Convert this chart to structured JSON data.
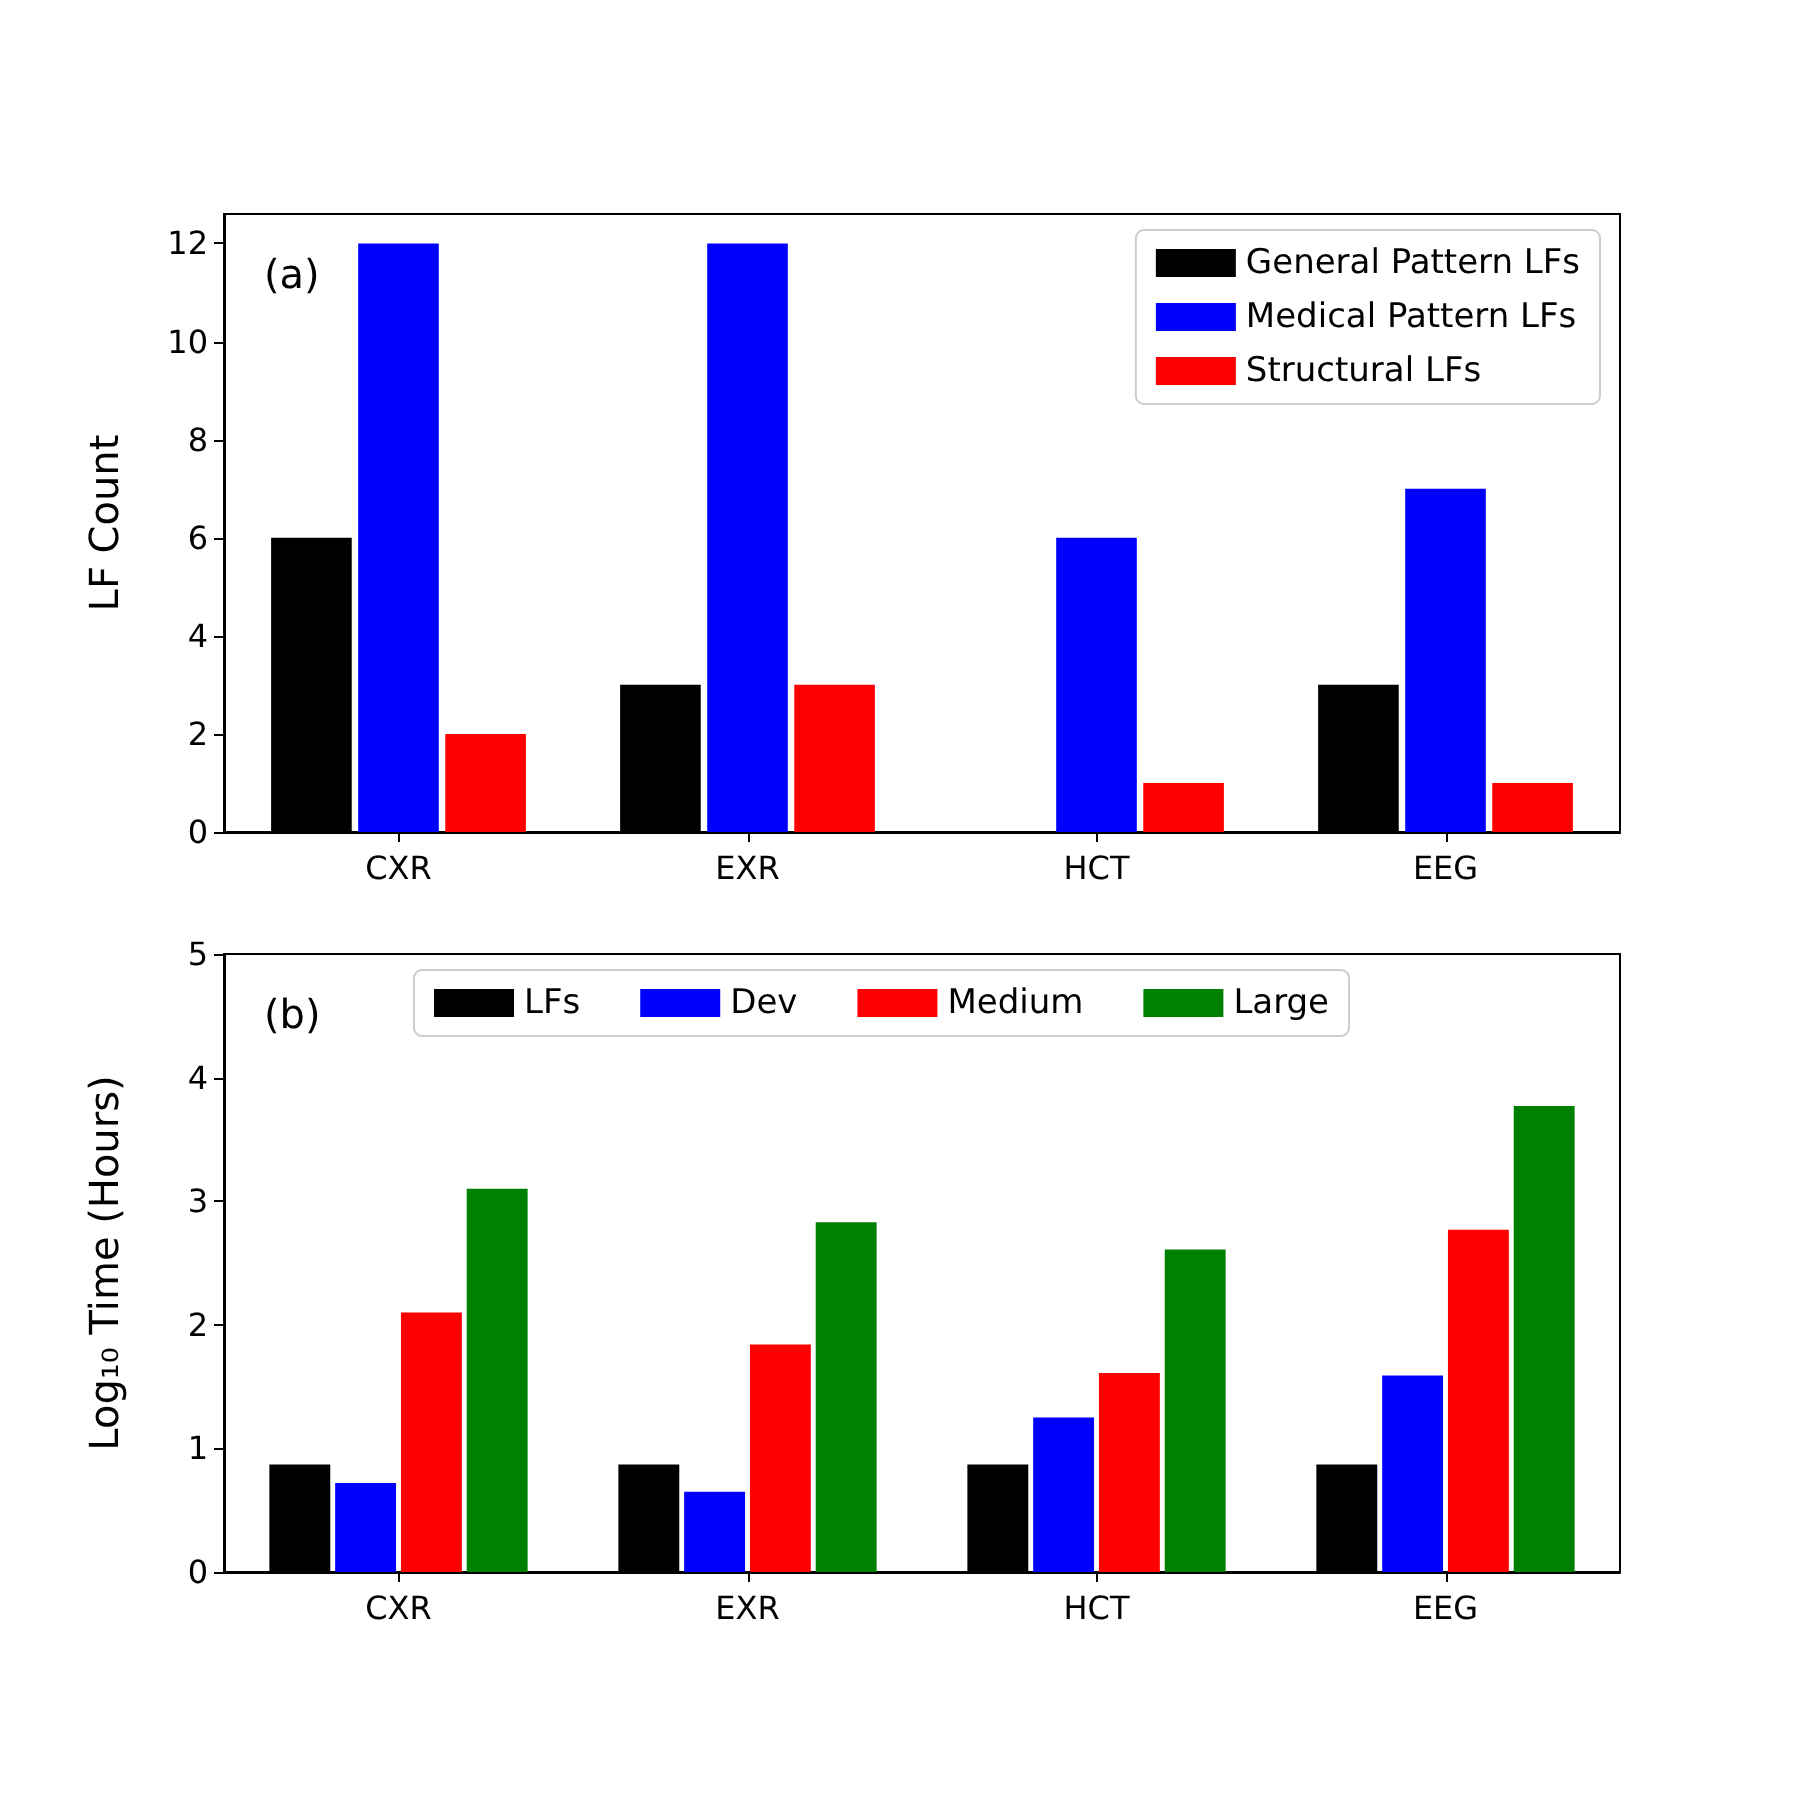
{
  "chart_data": [
    {
      "type": "bar",
      "ylabel": "LF Count",
      "annotations": [
        "(a)"
      ],
      "categories": [
        "CXR",
        "EXR",
        "HCT",
        "EEG"
      ],
      "series": [
        {
          "name": "General Pattern LFs",
          "color": "#000000",
          "values": [
            6,
            3,
            0,
            3
          ]
        },
        {
          "name": "Medical Pattern LFs",
          "color": "#0000ff",
          "values": [
            12,
            12,
            6,
            7
          ]
        },
        {
          "name": "Structural LFs",
          "color": "#ff0000",
          "values": [
            2,
            3,
            1,
            1
          ]
        }
      ],
      "ylim": [
        0,
        12.6
      ],
      "yticks": [
        0,
        2,
        4,
        6,
        8,
        10,
        12
      ],
      "grid": false,
      "legend": "top right"
    },
    {
      "type": "bar",
      "ylabel": "Log₁₀ Time (Hours)",
      "annotations": [
        "(b)"
      ],
      "categories": [
        "CXR",
        "EXR",
        "HCT",
        "EEG"
      ],
      "series": [
        {
          "name": "LFs",
          "color": "#000000",
          "values": [
            0.87,
            0.87,
            0.87,
            0.87
          ]
        },
        {
          "name": "Dev",
          "color": "#0000ff",
          "values": [
            0.72,
            0.65,
            1.25,
            1.59
          ]
        },
        {
          "name": "Medium",
          "color": "#ff0000",
          "values": [
            2.1,
            1.84,
            1.61,
            2.77
          ]
        },
        {
          "name": "Large",
          "color": "#008000",
          "values": [
            3.1,
            2.83,
            2.61,
            3.77
          ]
        }
      ],
      "ylim": [
        0,
        5
      ],
      "yticks": [
        0,
        1,
        2,
        3,
        4,
        5
      ],
      "grid": false,
      "legend": "top"
    }
  ]
}
